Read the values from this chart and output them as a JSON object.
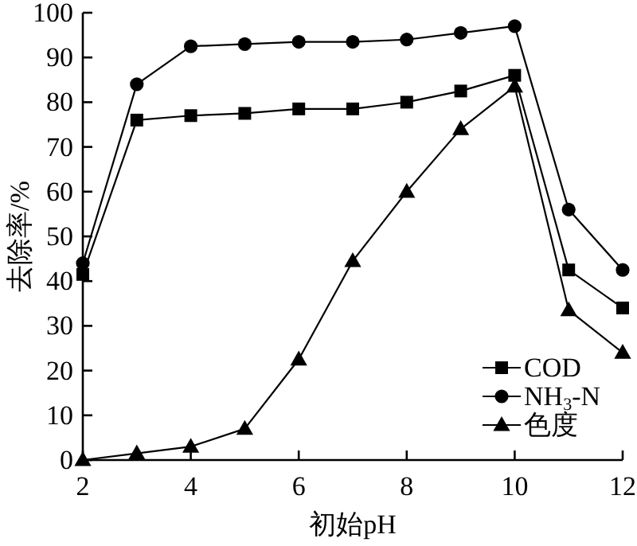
{
  "chart_data": {
    "type": "line",
    "xlabel": "初始pH",
    "ylabel": "去除率/%",
    "x": [
      2,
      3,
      4,
      5,
      6,
      7,
      8,
      9,
      10,
      11,
      12
    ],
    "series": [
      {
        "name": "COD",
        "color": "#000000",
        "marker": "square",
        "values": [
          41.5,
          76,
          77,
          77.5,
          78.5,
          78.5,
          80,
          82.5,
          86,
          42.5,
          34
        ]
      },
      {
        "name": "NH$_{3}$-N",
        "color": "#000000",
        "marker": "circle",
        "values": [
          44,
          84,
          92.5,
          93,
          93.5,
          93.5,
          94,
          95.5,
          97,
          56,
          42.5
        ]
      },
      {
        "name": "色度",
        "color": "#000000",
        "marker": "triangle",
        "values": [
          0,
          1.5,
          3,
          7,
          22.5,
          44.5,
          60,
          74,
          83.5,
          33.5,
          24
        ]
      }
    ],
    "xlim": [
      2,
      12
    ],
    "ylim": [
      0,
      100
    ],
    "xticks": [
      2,
      4,
      6,
      8,
      10,
      12
    ],
    "yticks": [
      0,
      10,
      20,
      30,
      40,
      50,
      60,
      70,
      80,
      90,
      100
    ],
    "legend": "bottom right"
  }
}
